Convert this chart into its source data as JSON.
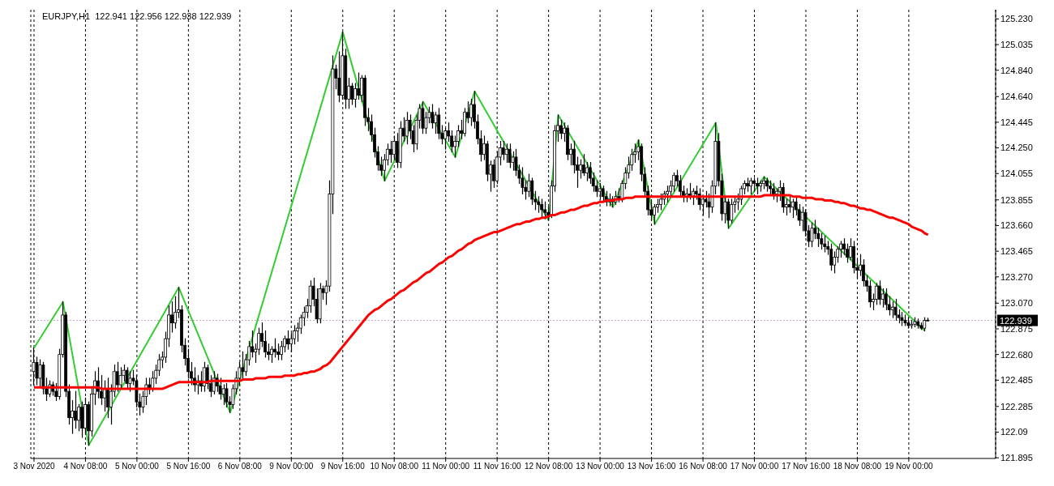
{
  "chart_data": {
    "type": "candlestick",
    "title": "EURJPY,H1  122.941 122.956 122.938 122.939",
    "color": "#000000",
    "categories": [
      "3 Nov 2020",
      null,
      null,
      null,
      null,
      null,
      null,
      null,
      null,
      null,
      null,
      null,
      null,
      null,
      null,
      null,
      "4 Nov 08:00",
      null,
      null,
      null,
      null,
      null,
      null,
      null,
      null,
      null,
      null,
      null,
      null,
      null,
      null,
      null,
      "5 Nov 00:00",
      null,
      null,
      null,
      null,
      null,
      null,
      null,
      null,
      null,
      null,
      null,
      null,
      null,
      null,
      null,
      "5 Nov 16:00",
      null,
      null,
      null,
      null,
      null,
      null,
      null,
      null,
      null,
      null,
      null,
      null,
      null,
      null,
      null,
      "6 Nov 08:00",
      null,
      null,
      null,
      null,
      null,
      null,
      null,
      null,
      null,
      null,
      null,
      null,
      null,
      null,
      null,
      "9 Nov 00:00",
      null,
      null,
      null,
      null,
      null,
      null,
      null,
      null,
      null,
      null,
      null,
      null,
      null,
      null,
      null,
      "9 Nov 16:00",
      null,
      null,
      null,
      null,
      null,
      null,
      null,
      null,
      null,
      null,
      null,
      null,
      null,
      null,
      null,
      "10 Nov 08:00",
      null,
      null,
      null,
      null,
      null,
      null,
      null,
      null,
      null,
      null,
      null,
      null,
      null,
      null,
      null,
      "11 Nov 00:00",
      null,
      null,
      null,
      null,
      null,
      null,
      null,
      null,
      null,
      null,
      null,
      null,
      null,
      null,
      null,
      "11 Nov 16:00",
      null,
      null,
      null,
      null,
      null,
      null,
      null,
      null,
      null,
      null,
      null,
      null,
      null,
      null,
      null,
      "12 Nov 08:00",
      null,
      null,
      null,
      null,
      null,
      null,
      null,
      null,
      null,
      null,
      null,
      null,
      null,
      null,
      null,
      "13 Nov 00:00",
      null,
      null,
      null,
      null,
      null,
      null,
      null,
      null,
      null,
      null,
      null,
      null,
      null,
      null,
      null,
      "13 Nov 16:00",
      null,
      null,
      null,
      null,
      null,
      null,
      null,
      null,
      null,
      null,
      null,
      null,
      null,
      null,
      null,
      "16 Nov 08:00",
      null,
      null,
      null,
      null,
      null,
      null,
      null,
      null,
      null,
      null,
      null,
      null,
      null,
      null,
      null,
      "17 Nov 00:00",
      null,
      null,
      null,
      null,
      null,
      null,
      null,
      null,
      null,
      null,
      null,
      null,
      null,
      null,
      null,
      "17 Nov 16:00",
      null,
      null,
      null,
      null,
      null,
      null,
      null,
      null,
      null,
      null,
      null,
      null,
      null,
      null,
      null,
      "18 Nov 08:00",
      null,
      null,
      null,
      null,
      null,
      null,
      null,
      null,
      null,
      null,
      null,
      null,
      null,
      null,
      null,
      "19 Nov 00:00",
      null,
      null,
      null,
      null,
      null,
      null
    ],
    "ohlc": [
      [
        122.55,
        122.73,
        122.45,
        122.62
      ],
      [
        122.62,
        122.66,
        122.45,
        122.5
      ],
      [
        122.5,
        122.64,
        122.44,
        122.6
      ],
      [
        122.6,
        122.62,
        122.38,
        122.42
      ],
      [
        122.42,
        122.5,
        122.33,
        122.38
      ],
      [
        122.38,
        122.48,
        122.36,
        122.45
      ],
      [
        122.45,
        122.47,
        122.37,
        122.4
      ],
      [
        122.4,
        122.46,
        122.33,
        122.36
      ],
      [
        122.36,
        122.72,
        122.34,
        122.68
      ],
      [
        122.68,
        123.08,
        122.66,
        122.98
      ],
      [
        122.98,
        123.0,
        122.36,
        122.4
      ],
      [
        122.4,
        122.45,
        122.15,
        122.2
      ],
      [
        122.2,
        122.33,
        122.08,
        122.25
      ],
      [
        122.25,
        122.4,
        122.12,
        122.18
      ],
      [
        122.18,
        122.3,
        122.1,
        122.28
      ],
      [
        122.28,
        122.32,
        122.05,
        122.12
      ],
      [
        122.12,
        122.35,
        122.08,
        122.3
      ],
      [
        122.3,
        122.32,
        121.99,
        122.1
      ],
      [
        122.1,
        122.42,
        122.06,
        122.38
      ],
      [
        122.38,
        122.55,
        122.3,
        122.48
      ],
      [
        122.48,
        122.58,
        122.35,
        122.4
      ],
      [
        122.4,
        122.52,
        122.3,
        122.35
      ],
      [
        122.35,
        122.48,
        122.25,
        122.42
      ],
      [
        122.42,
        122.5,
        122.2,
        122.28
      ],
      [
        122.28,
        122.45,
        122.15,
        122.4
      ],
      [
        122.4,
        122.6,
        122.36,
        122.55
      ],
      [
        122.55,
        122.62,
        122.4,
        122.45
      ],
      [
        122.45,
        122.58,
        122.42,
        122.52
      ],
      [
        122.52,
        122.6,
        122.48,
        122.56
      ],
      [
        122.56,
        122.58,
        122.42,
        122.46
      ],
      [
        122.46,
        122.55,
        122.4,
        122.5
      ],
      [
        122.5,
        122.56,
        122.45,
        122.48
      ],
      [
        122.48,
        122.52,
        122.28,
        122.32
      ],
      [
        122.32,
        122.38,
        122.22,
        122.28
      ],
      [
        122.28,
        122.4,
        122.24,
        122.36
      ],
      [
        122.36,
        122.5,
        122.3,
        122.45
      ],
      [
        122.45,
        122.5,
        122.38,
        122.42
      ],
      [
        122.42,
        122.55,
        122.4,
        122.5
      ],
      [
        122.5,
        122.6,
        122.46,
        122.56
      ],
      [
        122.56,
        122.68,
        122.52,
        122.64
      ],
      [
        122.64,
        122.7,
        122.58,
        122.66
      ],
      [
        122.66,
        122.85,
        122.62,
        122.8
      ],
      [
        122.8,
        123.05,
        122.74,
        122.98
      ],
      [
        122.98,
        123.08,
        122.85,
        122.92
      ],
      [
        122.92,
        123.12,
        122.88,
        123.0
      ],
      [
        123.0,
        123.19,
        122.96,
        123.02
      ],
      [
        123.02,
        123.05,
        122.7,
        122.75
      ],
      [
        122.75,
        122.8,
        122.6,
        122.65
      ],
      [
        122.65,
        122.72,
        122.5,
        122.55
      ],
      [
        122.55,
        122.62,
        122.45,
        122.5
      ],
      [
        122.5,
        122.58,
        122.4,
        122.45
      ],
      [
        122.45,
        122.52,
        122.38,
        122.48
      ],
      [
        122.48,
        122.55,
        122.4,
        122.44
      ],
      [
        122.44,
        122.62,
        122.4,
        122.58
      ],
      [
        122.58,
        122.6,
        122.42,
        122.46
      ],
      [
        122.46,
        122.52,
        122.36,
        122.4
      ],
      [
        122.4,
        122.55,
        122.38,
        122.5
      ],
      [
        122.5,
        122.53,
        122.4,
        122.44
      ],
      [
        122.44,
        122.5,
        122.34,
        122.38
      ],
      [
        122.38,
        122.45,
        122.3,
        122.42
      ],
      [
        122.42,
        122.46,
        122.28,
        122.32
      ],
      [
        122.32,
        122.36,
        122.24,
        122.3
      ],
      [
        122.3,
        122.45,
        122.27,
        122.42
      ],
      [
        122.42,
        122.55,
        122.38,
        122.5
      ],
      [
        122.5,
        122.62,
        122.45,
        122.58
      ],
      [
        122.58,
        122.7,
        122.5,
        122.55
      ],
      [
        122.55,
        122.68,
        122.52,
        122.64
      ],
      [
        122.64,
        122.78,
        122.6,
        122.74
      ],
      [
        122.74,
        122.86,
        122.66,
        122.7
      ],
      [
        122.7,
        122.76,
        122.62,
        122.72
      ],
      [
        122.72,
        122.88,
        122.68,
        122.84
      ],
      [
        122.84,
        122.92,
        122.74,
        122.78
      ],
      [
        122.78,
        122.86,
        122.66,
        122.7
      ],
      [
        122.7,
        122.76,
        122.64,
        122.68
      ],
      [
        122.68,
        122.74,
        122.62,
        122.72
      ],
      [
        122.72,
        122.8,
        122.66,
        122.7
      ],
      [
        122.7,
        122.76,
        122.64,
        122.68
      ],
      [
        122.68,
        122.78,
        122.64,
        122.74
      ],
      [
        122.74,
        122.82,
        122.7,
        122.8
      ],
      [
        122.8,
        122.86,
        122.72,
        122.76
      ],
      [
        122.76,
        122.84,
        122.7,
        122.8
      ],
      [
        122.8,
        122.9,
        122.76,
        122.86
      ],
      [
        122.86,
        122.92,
        122.78,
        122.88
      ],
      [
        122.88,
        122.98,
        122.84,
        122.96
      ],
      [
        122.96,
        123.04,
        122.9,
        123.0
      ],
      [
        123.0,
        123.1,
        122.96,
        123.05
      ],
      [
        123.05,
        123.24,
        123.0,
        123.2
      ],
      [
        123.2,
        123.26,
        123.05,
        123.1
      ],
      [
        123.1,
        123.18,
        122.92,
        122.95
      ],
      [
        122.95,
        123.22,
        122.92,
        123.18
      ],
      [
        123.18,
        123.2,
        123.1,
        123.15
      ],
      [
        123.15,
        123.24,
        123.06,
        123.2
      ],
      [
        123.2,
        124.0,
        123.16,
        123.9
      ],
      [
        123.9,
        124.95,
        123.75,
        124.85
      ],
      [
        124.85,
        124.88,
        124.7,
        124.78
      ],
      [
        124.78,
        124.98,
        124.6,
        124.65
      ],
      [
        124.65,
        125.13,
        124.62,
        124.95
      ],
      [
        124.95,
        125.0,
        124.55,
        124.62
      ],
      [
        124.62,
        124.78,
        124.55,
        124.72
      ],
      [
        124.72,
        124.74,
        124.58,
        124.62
      ],
      [
        124.62,
        124.74,
        124.56,
        124.7
      ],
      [
        124.7,
        124.82,
        124.62,
        124.65
      ],
      [
        124.65,
        124.8,
        124.6,
        124.78
      ],
      [
        124.78,
        124.8,
        124.42,
        124.48
      ],
      [
        124.48,
        124.55,
        124.38,
        124.45
      ],
      [
        124.45,
        124.5,
        124.3,
        124.35
      ],
      [
        124.35,
        124.4,
        124.18,
        124.22
      ],
      [
        124.22,
        124.26,
        124.08,
        124.12
      ],
      [
        124.12,
        124.18,
        124.04,
        124.08
      ],
      [
        124.08,
        124.2,
        124.0,
        124.16
      ],
      [
        124.16,
        124.28,
        124.12,
        124.24
      ],
      [
        124.24,
        124.3,
        124.14,
        124.2
      ],
      [
        124.2,
        124.34,
        124.16,
        124.3
      ],
      [
        124.3,
        124.36,
        124.1,
        124.14
      ],
      [
        124.14,
        124.45,
        124.1,
        124.4
      ],
      [
        124.4,
        124.48,
        124.3,
        124.34
      ],
      [
        124.34,
        124.52,
        124.28,
        124.46
      ],
      [
        124.46,
        124.5,
        124.32,
        124.38
      ],
      [
        124.38,
        124.42,
        124.22,
        124.28
      ],
      [
        124.28,
        124.5,
        124.24,
        124.46
      ],
      [
        124.46,
        124.58,
        124.4,
        124.55
      ],
      [
        124.55,
        124.6,
        124.36,
        124.4
      ],
      [
        124.4,
        124.52,
        124.36,
        124.48
      ],
      [
        124.48,
        124.56,
        124.44,
        124.52
      ],
      [
        124.52,
        124.58,
        124.4,
        124.44
      ],
      [
        124.44,
        124.52,
        124.36,
        124.5
      ],
      [
        124.5,
        124.55,
        124.32,
        124.36
      ],
      [
        124.36,
        124.42,
        124.28,
        124.32
      ],
      [
        124.32,
        124.4,
        124.24,
        124.38
      ],
      [
        124.38,
        124.44,
        124.3,
        124.34
      ],
      [
        124.34,
        124.38,
        124.22,
        124.26
      ],
      [
        124.26,
        124.34,
        124.18,
        124.3
      ],
      [
        124.3,
        124.42,
        124.26,
        124.38
      ],
      [
        124.38,
        124.46,
        124.32,
        124.36
      ],
      [
        124.36,
        124.55,
        124.34,
        124.52
      ],
      [
        124.52,
        124.6,
        124.44,
        124.48
      ],
      [
        124.48,
        124.62,
        124.42,
        124.58
      ],
      [
        124.58,
        124.68,
        124.4,
        124.45
      ],
      [
        124.45,
        124.5,
        124.28,
        124.32
      ],
      [
        124.32,
        124.38,
        124.15,
        124.2
      ],
      [
        124.2,
        124.34,
        124.16,
        124.28
      ],
      [
        124.28,
        124.3,
        124.0,
        124.05
      ],
      [
        124.05,
        124.15,
        123.92,
        124.12
      ],
      [
        124.12,
        124.16,
        123.95,
        124.0
      ],
      [
        124.0,
        124.22,
        123.98,
        124.18
      ],
      [
        124.18,
        124.3,
        124.12,
        124.25
      ],
      [
        124.25,
        124.3,
        124.16,
        124.2
      ],
      [
        124.2,
        124.28,
        124.14,
        124.24
      ],
      [
        124.24,
        124.28,
        124.1,
        124.14
      ],
      [
        124.14,
        124.22,
        124.08,
        124.18
      ],
      [
        124.18,
        124.24,
        124.04,
        124.08
      ],
      [
        124.08,
        124.12,
        123.98,
        124.02
      ],
      [
        124.02,
        124.1,
        123.9,
        123.95
      ],
      [
        123.95,
        124.0,
        123.86,
        123.92
      ],
      [
        123.92,
        124.05,
        123.88,
        124.0
      ],
      [
        124.0,
        124.02,
        123.82,
        123.86
      ],
      [
        123.86,
        123.92,
        123.78,
        123.84
      ],
      [
        123.84,
        123.88,
        123.76,
        123.82
      ],
      [
        123.82,
        123.86,
        123.72,
        123.78
      ],
      [
        123.78,
        123.84,
        123.71,
        123.76
      ],
      [
        123.76,
        123.8,
        123.7,
        123.74
      ],
      [
        123.74,
        124.0,
        123.72,
        123.96
      ],
      [
        123.96,
        124.42,
        123.92,
        124.38
      ],
      [
        124.38,
        124.5,
        124.3,
        124.42
      ],
      [
        124.42,
        124.46,
        124.32,
        124.36
      ],
      [
        124.36,
        124.44,
        124.3,
        124.4
      ],
      [
        124.4,
        124.42,
        124.16,
        124.2
      ],
      [
        124.2,
        124.28,
        124.12,
        124.24
      ],
      [
        124.24,
        124.3,
        124.06,
        124.12
      ],
      [
        124.12,
        124.18,
        123.95,
        124.08
      ],
      [
        124.08,
        124.16,
        124.02,
        124.12
      ],
      [
        124.12,
        124.2,
        124.04,
        124.06
      ],
      [
        124.06,
        124.14,
        124.0,
        124.1
      ],
      [
        124.1,
        124.14,
        123.98,
        124.02
      ],
      [
        124.02,
        124.06,
        123.92,
        123.96
      ],
      [
        123.96,
        124.0,
        123.88,
        123.92
      ],
      [
        123.92,
        123.98,
        123.86,
        123.94
      ],
      [
        123.94,
        123.96,
        123.84,
        123.88
      ],
      [
        123.88,
        123.92,
        123.81,
        123.84
      ],
      [
        123.84,
        123.9,
        123.81,
        123.86
      ],
      [
        123.86,
        123.88,
        123.8,
        123.84
      ],
      [
        123.84,
        123.92,
        123.82,
        123.88
      ],
      [
        123.88,
        123.94,
        123.84,
        123.86
      ],
      [
        123.86,
        124.0,
        123.84,
        123.98
      ],
      [
        123.98,
        124.1,
        123.94,
        124.06
      ],
      [
        124.06,
        124.18,
        124.02,
        124.12
      ],
      [
        124.12,
        124.24,
        124.08,
        124.2
      ],
      [
        124.2,
        124.28,
        124.14,
        124.22
      ],
      [
        124.22,
        124.31,
        124.16,
        124.26
      ],
      [
        124.26,
        124.28,
        124.0,
        124.05
      ],
      [
        124.05,
        124.1,
        123.88,
        123.92
      ],
      [
        123.92,
        123.96,
        123.74,
        123.78
      ],
      [
        123.78,
        123.84,
        123.7,
        123.74
      ],
      [
        123.74,
        123.82,
        123.67,
        123.8
      ],
      [
        123.8,
        123.86,
        123.76,
        123.82
      ],
      [
        123.82,
        123.9,
        123.78,
        123.86
      ],
      [
        123.86,
        123.92,
        123.82,
        123.9
      ],
      [
        123.9,
        123.96,
        123.84,
        123.92
      ],
      [
        123.92,
        124.0,
        123.88,
        123.96
      ],
      [
        123.96,
        124.06,
        123.92,
        124.04
      ],
      [
        124.04,
        124.08,
        123.96,
        124.0
      ],
      [
        124.0,
        124.04,
        123.88,
        123.92
      ],
      [
        123.92,
        123.96,
        123.84,
        123.88
      ],
      [
        123.88,
        123.94,
        123.84,
        123.9
      ],
      [
        123.9,
        123.98,
        123.86,
        123.88
      ],
      [
        123.88,
        123.94,
        123.82,
        123.92
      ],
      [
        123.92,
        123.96,
        123.86,
        123.9
      ],
      [
        123.9,
        123.94,
        123.78,
        123.82
      ],
      [
        123.82,
        123.88,
        123.74,
        123.86
      ],
      [
        123.86,
        123.92,
        123.8,
        123.84
      ],
      [
        123.84,
        123.9,
        123.72,
        123.8
      ],
      [
        123.8,
        124.0,
        123.76,
        123.96
      ],
      [
        123.96,
        124.44,
        123.9,
        124.3
      ],
      [
        124.3,
        124.36,
        123.96,
        124.0
      ],
      [
        124.0,
        124.05,
        123.7,
        123.75
      ],
      [
        123.75,
        123.88,
        123.68,
        123.84
      ],
      [
        123.84,
        123.86,
        123.64,
        123.7
      ],
      [
        123.7,
        123.86,
        123.68,
        123.82
      ],
      [
        123.82,
        123.88,
        123.76,
        123.84
      ],
      [
        123.84,
        123.9,
        123.78,
        123.86
      ],
      [
        123.86,
        123.96,
        123.82,
        123.94
      ],
      [
        123.94,
        124.0,
        123.9,
        123.98
      ],
      [
        123.98,
        124.02,
        123.92,
        123.96
      ],
      [
        123.96,
        124.02,
        123.9,
        124.0
      ],
      [
        124.0,
        124.02,
        123.92,
        123.98
      ],
      [
        123.98,
        124.02,
        123.9,
        123.96
      ],
      [
        123.96,
        124.0,
        123.92,
        123.98
      ],
      [
        123.98,
        124.03,
        123.94,
        124.0
      ],
      [
        124.0,
        124.02,
        123.92,
        123.96
      ],
      [
        123.96,
        124.0,
        123.9,
        123.94
      ],
      [
        123.94,
        123.98,
        123.86,
        123.9
      ],
      [
        123.9,
        123.94,
        123.84,
        123.92
      ],
      [
        123.92,
        124.0,
        123.85,
        123.95
      ],
      [
        123.95,
        123.98,
        123.76,
        123.8
      ],
      [
        123.8,
        123.86,
        123.74,
        123.82
      ],
      [
        123.82,
        123.88,
        123.76,
        123.8
      ],
      [
        123.8,
        123.86,
        123.72,
        123.84
      ],
      [
        123.84,
        123.88,
        123.74,
        123.78
      ],
      [
        123.78,
        123.82,
        123.66,
        123.7
      ],
      [
        123.7,
        123.8,
        123.62,
        123.76
      ],
      [
        123.76,
        123.78,
        123.58,
        123.62
      ],
      [
        123.62,
        123.66,
        123.5,
        123.54
      ],
      [
        123.54,
        123.68,
        123.5,
        123.64
      ],
      [
        123.64,
        123.7,
        123.56,
        123.6
      ],
      [
        123.6,
        123.64,
        123.5,
        123.56
      ],
      [
        123.56,
        123.6,
        123.48,
        123.52
      ],
      [
        123.52,
        123.58,
        123.46,
        123.5
      ],
      [
        123.5,
        123.54,
        123.44,
        123.48
      ],
      [
        123.48,
        123.52,
        123.32,
        123.36
      ],
      [
        123.36,
        123.46,
        123.3,
        123.42
      ],
      [
        123.42,
        123.5,
        123.38,
        123.48
      ],
      [
        123.48,
        123.54,
        123.42,
        123.52
      ],
      [
        123.52,
        123.56,
        123.44,
        123.48
      ],
      [
        123.48,
        123.52,
        123.38,
        123.42
      ],
      [
        123.42,
        123.56,
        123.4,
        123.5
      ],
      [
        123.5,
        123.54,
        123.3,
        123.34
      ],
      [
        123.34,
        123.4,
        123.26,
        123.32
      ],
      [
        123.32,
        123.44,
        123.28,
        123.36
      ],
      [
        123.36,
        123.4,
        123.2,
        123.24
      ],
      [
        123.24,
        123.28,
        123.16,
        123.2
      ],
      [
        123.2,
        123.24,
        123.04,
        123.08
      ],
      [
        123.08,
        123.14,
        123.02,
        123.1
      ],
      [
        123.1,
        123.22,
        123.06,
        123.2
      ],
      [
        123.2,
        123.24,
        123.06,
        123.1
      ],
      [
        123.1,
        123.18,
        123.04,
        123.14
      ],
      [
        123.14,
        123.18,
        123.02,
        123.06
      ],
      [
        123.06,
        123.12,
        122.98,
        123.02
      ],
      [
        123.02,
        123.08,
        122.96,
        123.04
      ],
      [
        123.04,
        123.1,
        122.94,
        122.98
      ],
      [
        122.98,
        123.02,
        122.92,
        122.96
      ],
      [
        122.96,
        123.0,
        122.9,
        122.94
      ],
      [
        122.94,
        122.98,
        122.9,
        122.92
      ],
      [
        122.92,
        122.96,
        122.88,
        122.9
      ],
      [
        122.9,
        122.94,
        122.88,
        122.91
      ],
      [
        122.91,
        122.96,
        122.89,
        122.93
      ],
      [
        122.93,
        122.95,
        122.88,
        122.9
      ],
      [
        122.9,
        122.92,
        122.87,
        122.88
      ],
      [
        122.88,
        122.96,
        122.86,
        122.94
      ],
      [
        122.941,
        122.956,
        122.938,
        122.939
      ]
    ],
    "series": [
      {
        "type": "line",
        "color": "#ff0000",
        "values": [
          122.43,
          122.43,
          122.43,
          122.43,
          122.43,
          122.43,
          122.43,
          122.43,
          122.43,
          122.43,
          122.43,
          122.43,
          122.43,
          122.43,
          122.43,
          122.43,
          122.43,
          122.43,
          122.43,
          122.43,
          122.43,
          122.42,
          122.42,
          122.42,
          122.42,
          122.42,
          122.42,
          122.42,
          122.42,
          122.42,
          122.42,
          122.42,
          122.42,
          122.42,
          122.42,
          122.42,
          122.42,
          122.42,
          122.42,
          122.42,
          122.42,
          122.43,
          122.44,
          122.45,
          122.46,
          122.47,
          122.47,
          122.47,
          122.47,
          122.47,
          122.47,
          122.47,
          122.47,
          122.47,
          122.47,
          122.48,
          122.48,
          122.48,
          122.48,
          122.48,
          122.48,
          122.48,
          122.48,
          122.48,
          122.48,
          122.49,
          122.49,
          122.49,
          122.49,
          122.5,
          122.5,
          122.5,
          122.5,
          122.51,
          122.51,
          122.51,
          122.51,
          122.51,
          122.52,
          122.52,
          122.52,
          122.52,
          122.53,
          122.53,
          122.54,
          122.54,
          122.55,
          122.55,
          122.56,
          122.57,
          122.59,
          122.6,
          122.62,
          122.65,
          122.68,
          122.71,
          122.74,
          122.77,
          122.8,
          122.83,
          122.86,
          122.89,
          122.92,
          122.95,
          122.98,
          123.0,
          123.02,
          123.03,
          123.05,
          123.07,
          123.09,
          123.1,
          123.12,
          123.14,
          123.16,
          123.17,
          123.19,
          123.21,
          123.23,
          123.24,
          123.26,
          123.28,
          123.3,
          123.31,
          123.33,
          123.35,
          123.37,
          123.38,
          123.4,
          123.42,
          123.43,
          123.45,
          123.47,
          123.48,
          123.5,
          123.52,
          123.53,
          123.55,
          123.56,
          123.57,
          123.58,
          123.59,
          123.6,
          123.61,
          123.61,
          123.62,
          123.63,
          123.64,
          123.65,
          123.66,
          123.67,
          123.67,
          123.68,
          123.69,
          123.69,
          123.7,
          123.71,
          123.71,
          123.72,
          123.72,
          123.73,
          123.74,
          123.74,
          123.75,
          123.76,
          123.76,
          123.77,
          123.78,
          123.78,
          123.79,
          123.8,
          123.81,
          123.81,
          123.82,
          123.83,
          123.83,
          123.84,
          123.84,
          123.85,
          123.85,
          123.85,
          123.86,
          123.86,
          123.86,
          123.87,
          123.87,
          123.87,
          123.88,
          123.88,
          123.88,
          123.88,
          123.88,
          123.88,
          123.88,
          123.88,
          123.88,
          123.88,
          123.88,
          123.88,
          123.88,
          123.88,
          123.88,
          123.88,
          123.88,
          123.88,
          123.88,
          123.88,
          123.88,
          123.88,
          123.88,
          123.88,
          123.88,
          123.88,
          123.88,
          123.88,
          123.88,
          123.88,
          123.88,
          123.88,
          123.88,
          123.88,
          123.88,
          123.88,
          123.88,
          123.88,
          123.88,
          123.88,
          123.89,
          123.89,
          123.89,
          123.89,
          123.89,
          123.89,
          123.89,
          123.89,
          123.89,
          123.88,
          123.88,
          123.88,
          123.87,
          123.87,
          123.87,
          123.87,
          123.86,
          123.86,
          123.86,
          123.85,
          123.85,
          123.85,
          123.84,
          123.84,
          123.83,
          123.83,
          123.82,
          123.81,
          123.81,
          123.8,
          123.79,
          123.79,
          123.78,
          123.78,
          123.77,
          123.76,
          123.75,
          123.74,
          123.73,
          123.72,
          123.72,
          123.71,
          123.7,
          123.69,
          123.68,
          123.67,
          123.65,
          123.64,
          123.63,
          123.62,
          123.6,
          123.59
        ]
      },
      {
        "type": "line",
        "color": "#33cc33",
        "values": [
          122.73,
          null,
          null,
          null,
          null,
          null,
          null,
          null,
          null,
          123.08,
          null,
          null,
          null,
          null,
          null,
          null,
          null,
          121.99,
          null,
          null,
          null,
          null,
          null,
          null,
          null,
          null,
          null,
          null,
          null,
          null,
          null,
          null,
          null,
          null,
          null,
          null,
          null,
          null,
          null,
          null,
          null,
          null,
          null,
          null,
          null,
          123.19,
          null,
          null,
          null,
          null,
          null,
          null,
          null,
          null,
          null,
          null,
          null,
          null,
          null,
          null,
          null,
          122.24,
          null,
          null,
          null,
          null,
          null,
          null,
          null,
          null,
          null,
          null,
          null,
          null,
          null,
          null,
          null,
          null,
          null,
          null,
          null,
          null,
          null,
          null,
          null,
          null,
          null,
          null,
          null,
          null,
          null,
          null,
          null,
          null,
          null,
          null,
          125.13,
          null,
          null,
          null,
          null,
          null,
          null,
          null,
          null,
          null,
          null,
          null,
          null,
          124.0,
          null,
          null,
          null,
          null,
          null,
          null,
          null,
          null,
          null,
          null,
          null,
          124.6,
          null,
          null,
          null,
          null,
          null,
          null,
          null,
          null,
          null,
          124.18,
          null,
          null,
          null,
          null,
          null,
          124.68,
          null,
          null,
          null,
          null,
          null,
          null,
          null,
          null,
          null,
          null,
          null,
          null,
          null,
          null,
          null,
          null,
          null,
          null,
          null,
          null,
          null,
          null,
          123.7,
          null,
          null,
          124.5,
          null,
          null,
          null,
          null,
          null,
          null,
          null,
          null,
          null,
          null,
          null,
          null,
          null,
          null,
          null,
          null,
          123.8,
          null,
          null,
          null,
          null,
          null,
          null,
          null,
          124.31,
          null,
          null,
          null,
          null,
          123.67,
          null,
          null,
          null,
          null,
          null,
          null,
          null,
          null,
          null,
          null,
          null,
          null,
          null,
          null,
          null,
          null,
          null,
          null,
          124.44,
          null,
          null,
          null,
          123.64,
          null,
          null,
          null,
          null,
          null,
          null,
          null,
          null,
          null,
          null,
          124.03,
          null,
          null,
          null,
          null,
          null,
          null,
          null,
          null,
          null,
          null,
          null,
          null,
          null,
          null,
          null,
          null,
          null,
          null,
          null,
          null,
          null,
          null,
          null,
          null,
          null,
          null,
          null,
          null,
          null,
          null,
          null,
          null,
          null,
          null,
          null,
          null,
          null,
          null,
          null,
          null,
          null,
          null,
          null,
          null,
          null,
          null,
          null,
          null,
          null,
          122.86,
          null
        ]
      }
    ],
    "ylim": [
      121.89,
      125.3
    ],
    "yticks": [
      121.895,
      122.09,
      122.285,
      122.485,
      {
        "value": 122.68,
        "label": "122.680"
      },
      122.875,
      {
        "value": 123.07,
        "label": "123.070"
      },
      {
        "value": 123.27,
        "label": "123.270"
      },
      123.465,
      {
        "value": 123.66,
        "label": "123.660"
      },
      123.855,
      124.055,
      {
        "value": 124.25,
        "label": "124.250"
      },
      124.445,
      {
        "value": 124.64,
        "label": "124.640"
      },
      {
        "value": 124.84,
        "label": "124.840"
      },
      125.035,
      {
        "value": 125.23,
        "label": "125.230"
      }
    ],
    "grid": "x",
    "ref_lines": [
      {
        "axis": "y",
        "value": 122.939,
        "label": "122.939",
        "color": "#c8a8c8",
        "line_style": "dotted"
      }
    ]
  }
}
